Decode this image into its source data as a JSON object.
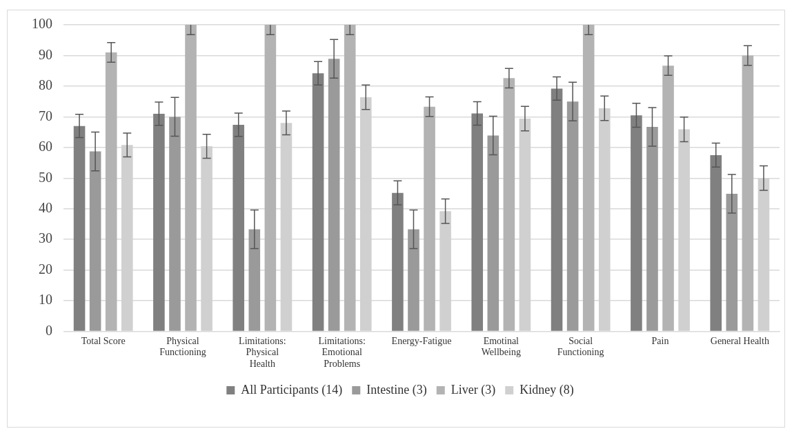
{
  "chart_data": {
    "type": "bar",
    "categories": [
      "Total Score",
      "Physical Functioning",
      "Limitations: Physical Health",
      "Limitations: Emotional Problems",
      "Energy-Fatigue",
      "Emotinal Wellbeing",
      "Social Functioning",
      "Pain",
      "General Health"
    ],
    "series": [
      {
        "name": "All Participants (14)",
        "color": "#808080",
        "values": [
          67,
          71,
          67.4,
          84.2,
          45.2,
          71.1,
          79.2,
          70.5,
          57.5
        ],
        "errors": [
          3.8,
          3.8,
          3.8,
          3.8,
          3.9,
          3.8,
          3.8,
          3.9,
          3.9
        ]
      },
      {
        "name": "Intestine (3)",
        "color": "#9a9a9a",
        "values": [
          58.7,
          70,
          33.3,
          88.9,
          33.3,
          63.9,
          75,
          66.7,
          44.9
        ],
        "errors": [
          6.3,
          6.3,
          6.3,
          6.3,
          6.3,
          6.3,
          6.3,
          6.3,
          6.3
        ]
      },
      {
        "name": "Liver (3)",
        "color": "#b3b3b3",
        "values": [
          91,
          100,
          100,
          100,
          73.3,
          82.6,
          100,
          86.7,
          90
        ],
        "errors": [
          3.2,
          [
            96.8,
            100
          ],
          [
            96.8,
            100
          ],
          [
            96.8,
            100
          ],
          3.2,
          3.2,
          [
            96.8,
            100
          ],
          3.2,
          3.2
        ]
      },
      {
        "name": "Kidney (8)",
        "color": "#d0d0d0",
        "values": [
          60.8,
          60.4,
          68,
          76.4,
          39.2,
          69.4,
          72.8,
          65.9,
          50
        ],
        "errors": [
          3.9,
          3.9,
          3.9,
          4,
          4,
          4,
          4,
          4,
          4
        ]
      }
    ],
    "ylim": [
      0,
      100
    ],
    "yticks": [
      0,
      10,
      20,
      30,
      40,
      50,
      60,
      70,
      80,
      90,
      100
    ],
    "grid": "y",
    "legend": "bottom"
  }
}
